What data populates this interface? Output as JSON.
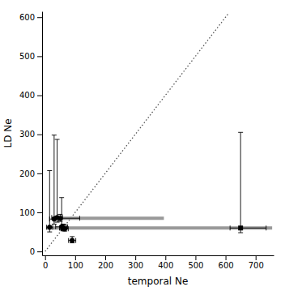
{
  "chart_data": {
    "type": "scatter",
    "xlabel": "temporal Ne",
    "ylabel": "LD Ne",
    "xlim": [
      -10,
      760
    ],
    "ylim": [
      -10,
      615
    ],
    "xticks": [
      0,
      100,
      200,
      300,
      400,
      500,
      600,
      700
    ],
    "yticks": [
      0,
      100,
      200,
      300,
      400,
      500,
      600
    ],
    "series": [
      {
        "type": "line",
        "x": [
          0,
          610
        ],
        "values": [
          0,
          610
        ],
        "color": "#555555",
        "line_style": "dotted"
      },
      {
        "type": "scatter",
        "marker": "square",
        "color": "#000000",
        "x": [
          650
        ],
        "values": [
          60
        ],
        "xerr_low": [
          35
        ],
        "xerr_high": [
          85
        ],
        "yerr_low": [
          12
        ],
        "yerr_high": [
          245
        ]
      },
      {
        "type": "scatter",
        "marker": "circle",
        "color": "#000000",
        "x": [
          15,
          30,
          40,
          50,
          55,
          60,
          65,
          90
        ],
        "values": [
          62,
          83,
          87,
          85,
          63,
          60,
          58,
          28
        ],
        "xerr_low": [
          10,
          15,
          18,
          18,
          20,
          12,
          12,
          12
        ],
        "xerr_high": [
          10,
          15,
          18,
          65,
          20,
          12,
          12,
          12
        ],
        "yerr_low": [
          12,
          13,
          12,
          8,
          8,
          7,
          6,
          6
        ],
        "yerr_high": [
          145,
          215,
          200,
          10,
          75,
          10,
          10,
          10
        ]
      }
    ],
    "hlines": [
      {
        "y": 85,
        "xmin": 30,
        "xmax": 395,
        "color": "#999999"
      },
      {
        "y": 60,
        "xmin": 5,
        "xmax": 755,
        "color": "#999999"
      }
    ]
  }
}
